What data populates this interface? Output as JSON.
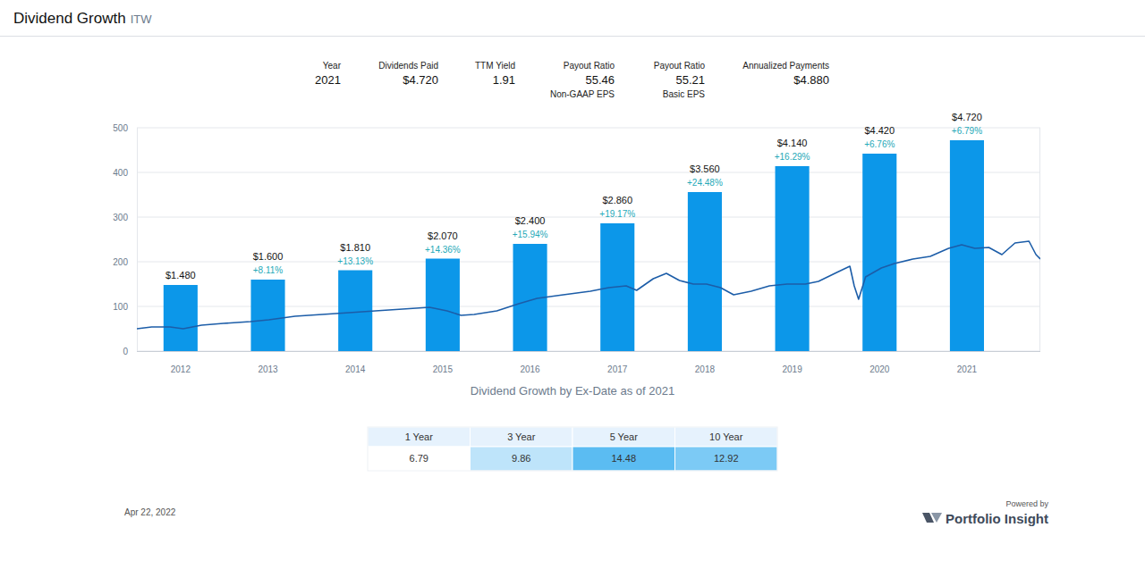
{
  "page": {
    "title": "Dividend Growth",
    "ticker": "ITW",
    "stats": [
      {
        "label": "Year",
        "value": "2021"
      },
      {
        "label": "Dividends Paid",
        "value": "$4.720"
      },
      {
        "label": "TTM Yield",
        "value": "1.91"
      },
      {
        "label": "Payout Ratio",
        "value": "55.46",
        "note": "Non-GAAP EPS"
      },
      {
        "label": "Payout Ratio",
        "value": "55.21",
        "note": "Basic EPS"
      },
      {
        "label": "Annualized Payments",
        "value": "$4.880"
      }
    ]
  },
  "chart_data": {
    "type": "bar",
    "x_label": "Dividend Growth by Ex-Date as of 2021",
    "xlim": [
      2011.5,
      2021.84
    ],
    "xticks": [
      2012,
      2013,
      2014,
      2015,
      2016,
      2017,
      2018,
      2019,
      2020,
      2021
    ],
    "ylim": [
      0,
      500
    ],
    "yticks": [
      0,
      100,
      200,
      300,
      400,
      500
    ],
    "y2lim": [
      0,
      5
    ],
    "grid": true,
    "data_labels": true,
    "series": [
      {
        "type": "bar",
        "axis": "y2",
        "color": "#0c97e9",
        "x": [
          2012,
          2013,
          2014,
          2015,
          2016,
          2017,
          2018,
          2019,
          2020,
          2021
        ],
        "values": [
          1.48,
          1.6,
          1.81,
          2.07,
          2.4,
          2.86,
          3.56,
          4.14,
          4.42,
          4.72
        ],
        "value_labels": [
          "$1.480",
          "$1.600",
          "$1.810",
          "$2.070",
          "$2.400",
          "$2.860",
          "$3.560",
          "$4.140",
          "$4.420",
          "$4.720"
        ],
        "growth_labels": [
          null,
          "+8.11%",
          "+13.13%",
          "+14.36%",
          "+15.94%",
          "+19.17%",
          "+24.48%",
          "+16.29%",
          "+6.76%",
          "+6.79%"
        ]
      },
      {
        "type": "line",
        "color": "#1c5da8",
        "x": [
          2011.5,
          2011.67,
          2011.88,
          2012.03,
          2012.24,
          2012.49,
          2012.8,
          2013.01,
          2013.31,
          2013.62,
          2013.93,
          2014.23,
          2014.54,
          2014.85,
          2015.05,
          2015.21,
          2015.36,
          2015.62,
          2015.87,
          2016.08,
          2016.38,
          2016.69,
          2016.9,
          2017.1,
          2017.22,
          2017.41,
          2017.56,
          2017.71,
          2017.87,
          2018.02,
          2018.18,
          2018.33,
          2018.53,
          2018.74,
          2018.94,
          2019.15,
          2019.3,
          2019.51,
          2019.66,
          2019.71,
          2019.76,
          2019.84,
          2020.02,
          2020.17,
          2020.38,
          2020.58,
          2020.79,
          2020.94,
          2021.09,
          2021.25,
          2021.4,
          2021.55,
          2021.71,
          2021.79,
          2021.84
        ],
        "values": [
          50,
          54,
          54,
          50,
          58,
          62,
          66,
          70,
          78,
          82,
          86,
          90,
          94,
          98,
          90,
          80,
          82,
          90,
          106,
          118,
          126,
          134,
          142,
          146,
          136,
          162,
          174,
          158,
          150,
          150,
          142,
          126,
          134,
          146,
          150,
          150,
          156,
          176,
          190,
          146,
          116,
          166,
          186,
          196,
          206,
          212,
          230,
          238,
          230,
          232,
          216,
          242,
          246,
          216,
          206
        ]
      }
    ]
  },
  "table": {
    "headers": [
      "1 Year",
      "3 Year",
      "5 Year",
      "10 Year"
    ],
    "values": [
      6.79,
      9.86,
      14.48,
      12.92
    ]
  },
  "footer": {
    "date": "Apr 22, 2022",
    "powered_by": "Powered by",
    "brand": "Portfolio Insight"
  }
}
